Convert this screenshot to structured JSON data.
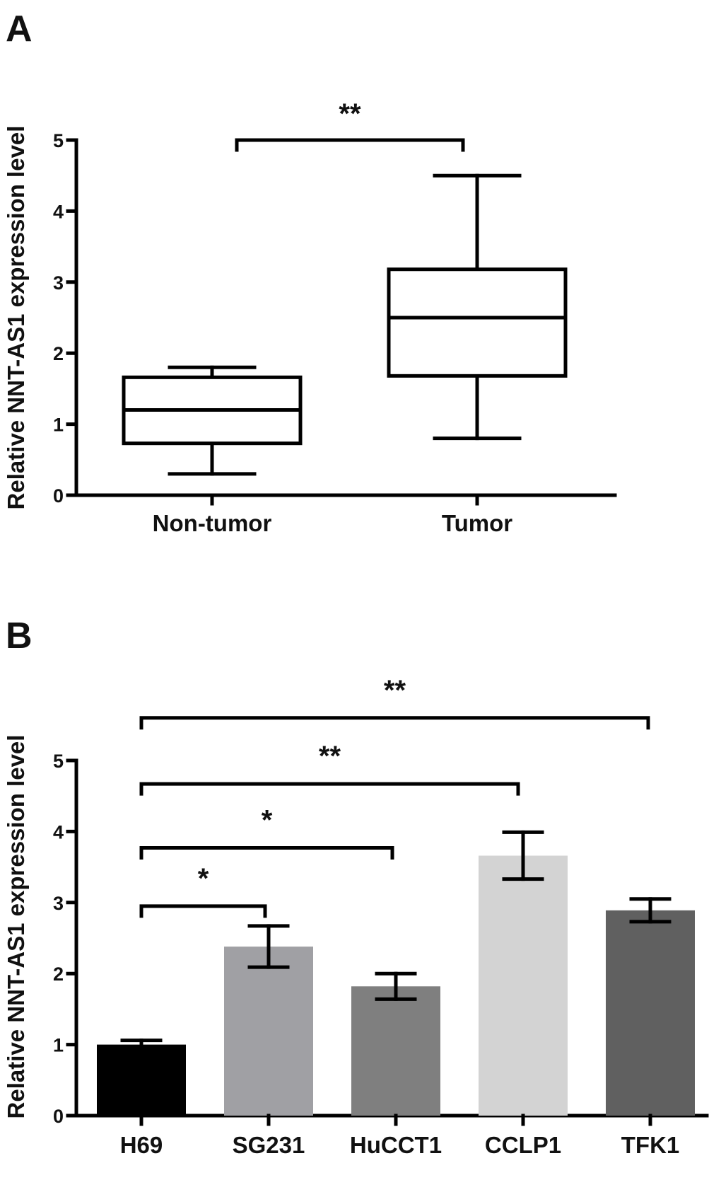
{
  "chart_data": [
    {
      "panel": "A",
      "type": "box",
      "ylabel": "Relative NNT-AS1 expression level",
      "ylim": [
        0,
        5
      ],
      "yticks": [
        "0",
        "1",
        "2",
        "3",
        "4",
        "5"
      ],
      "categories": [
        "Non-tumor",
        "Tumor"
      ],
      "boxes": [
        {
          "name": "Non-tumor",
          "min": 0.3,
          "q1": 0.73,
          "median": 1.2,
          "q3": 1.66,
          "max": 1.8
        },
        {
          "name": "Tumor",
          "min": 0.8,
          "q1": 1.68,
          "median": 2.5,
          "q3": 3.18,
          "max": 4.5
        }
      ],
      "significance": [
        {
          "from": 0,
          "to": 1,
          "label": "**",
          "level": 5.0
        }
      ]
    },
    {
      "panel": "B",
      "type": "bar",
      "ylabel": "Relative NNT-AS1 expression level",
      "ylim": [
        0,
        5
      ],
      "yticks": [
        "0",
        "1",
        "2",
        "3",
        "4",
        "5"
      ],
      "categories": [
        "H69",
        "SG231",
        "HuCCT1",
        "CCLP1",
        "TFK1"
      ],
      "values": [
        1.0,
        2.38,
        1.82,
        3.66,
        2.89
      ],
      "errors": [
        0.06,
        0.29,
        0.18,
        0.33,
        0.16
      ],
      "colors": [
        "#000000",
        "#a0a0a4",
        "#7f7f7f",
        "#d3d3d3",
        "#606060"
      ],
      "significance": [
        {
          "from": 0,
          "to": 1,
          "label": "*",
          "level": 2.95
        },
        {
          "from": 0,
          "to": 2,
          "label": "*",
          "level": 3.77
        },
        {
          "from": 0,
          "to": 3,
          "label": "**",
          "level": 4.67
        },
        {
          "from": 0,
          "to": 4,
          "label": "**",
          "level": 5.6
        }
      ]
    }
  ]
}
